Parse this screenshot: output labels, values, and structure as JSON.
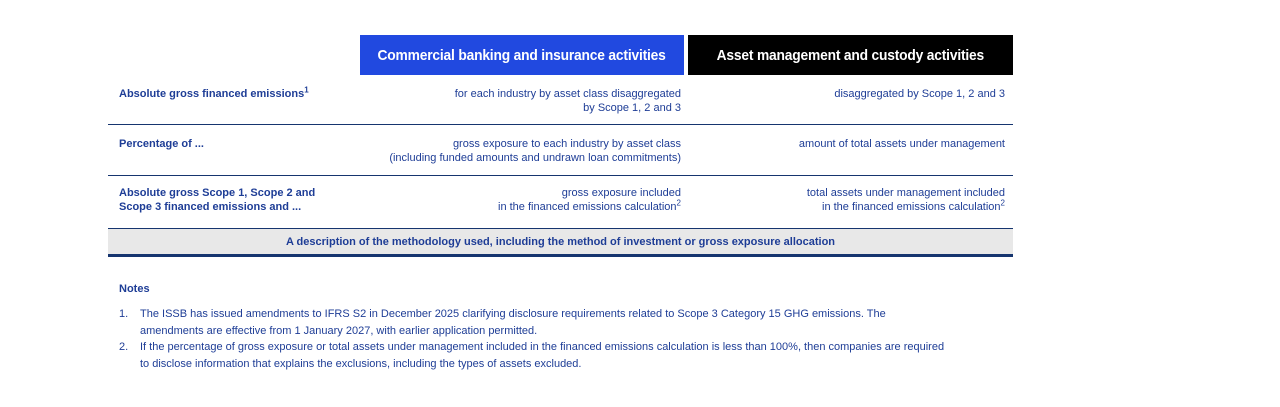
{
  "colors": {
    "header_blue": "#2149e0",
    "header_black": "#000000",
    "text_navy": "#1e3d96",
    "line_navy": "#16356f",
    "bar_gray": "#e8e8e8"
  },
  "table": {
    "headers": [
      {
        "label": "Commercial banking and insurance activities"
      },
      {
        "label": "Asset management and custody activities"
      }
    ],
    "rows": [
      {
        "label": {
          "line1": "Absolute gross financed emissions",
          "sup": "1"
        },
        "banking": {
          "line1": "for each industry by asset class disaggregated",
          "line2": "by Scope 1, 2 and 3"
        },
        "asset": {
          "line1": "disaggregated by Scope 1, 2 and 3"
        }
      },
      {
        "label": {
          "line1": "Percentage of ..."
        },
        "banking": {
          "line1": "gross exposure to each industry by asset class",
          "line2": "(including funded amounts and undrawn loan commitments)"
        },
        "asset": {
          "line1": "amount of total assets under management"
        }
      },
      {
        "label": {
          "line1": "Absolute gross Scope 1, Scope 2 and",
          "line2": "Scope 3 financed emissions and ..."
        },
        "banking": {
          "line1": "gross exposure included",
          "line2": "in the financed emissions calculation",
          "line2_sup": "2"
        },
        "asset": {
          "line1": "total assets under management included",
          "line2": "in the financed emissions calculation",
          "line2_sup": "2"
        }
      }
    ],
    "methodology_bar": "A description of the methodology used, including the method of investment or gross exposure allocation"
  },
  "notes": {
    "heading": "Notes",
    "items": [
      {
        "number": "1.",
        "text": "The ISSB has issued amendments to IFRS S2 in December 2025 clarifying disclosure requirements related to Scope 3 Category 15 GHG emissions. The amendments are effective from 1 January 2027, with earlier application permitted."
      },
      {
        "number": "2.",
        "text": "If the percentage of gross exposure or total assets under management included in the financed emissions calculation is less than 100%, then companies are required to disclose information that explains the exclusions, including the types of assets excluded."
      }
    ]
  }
}
